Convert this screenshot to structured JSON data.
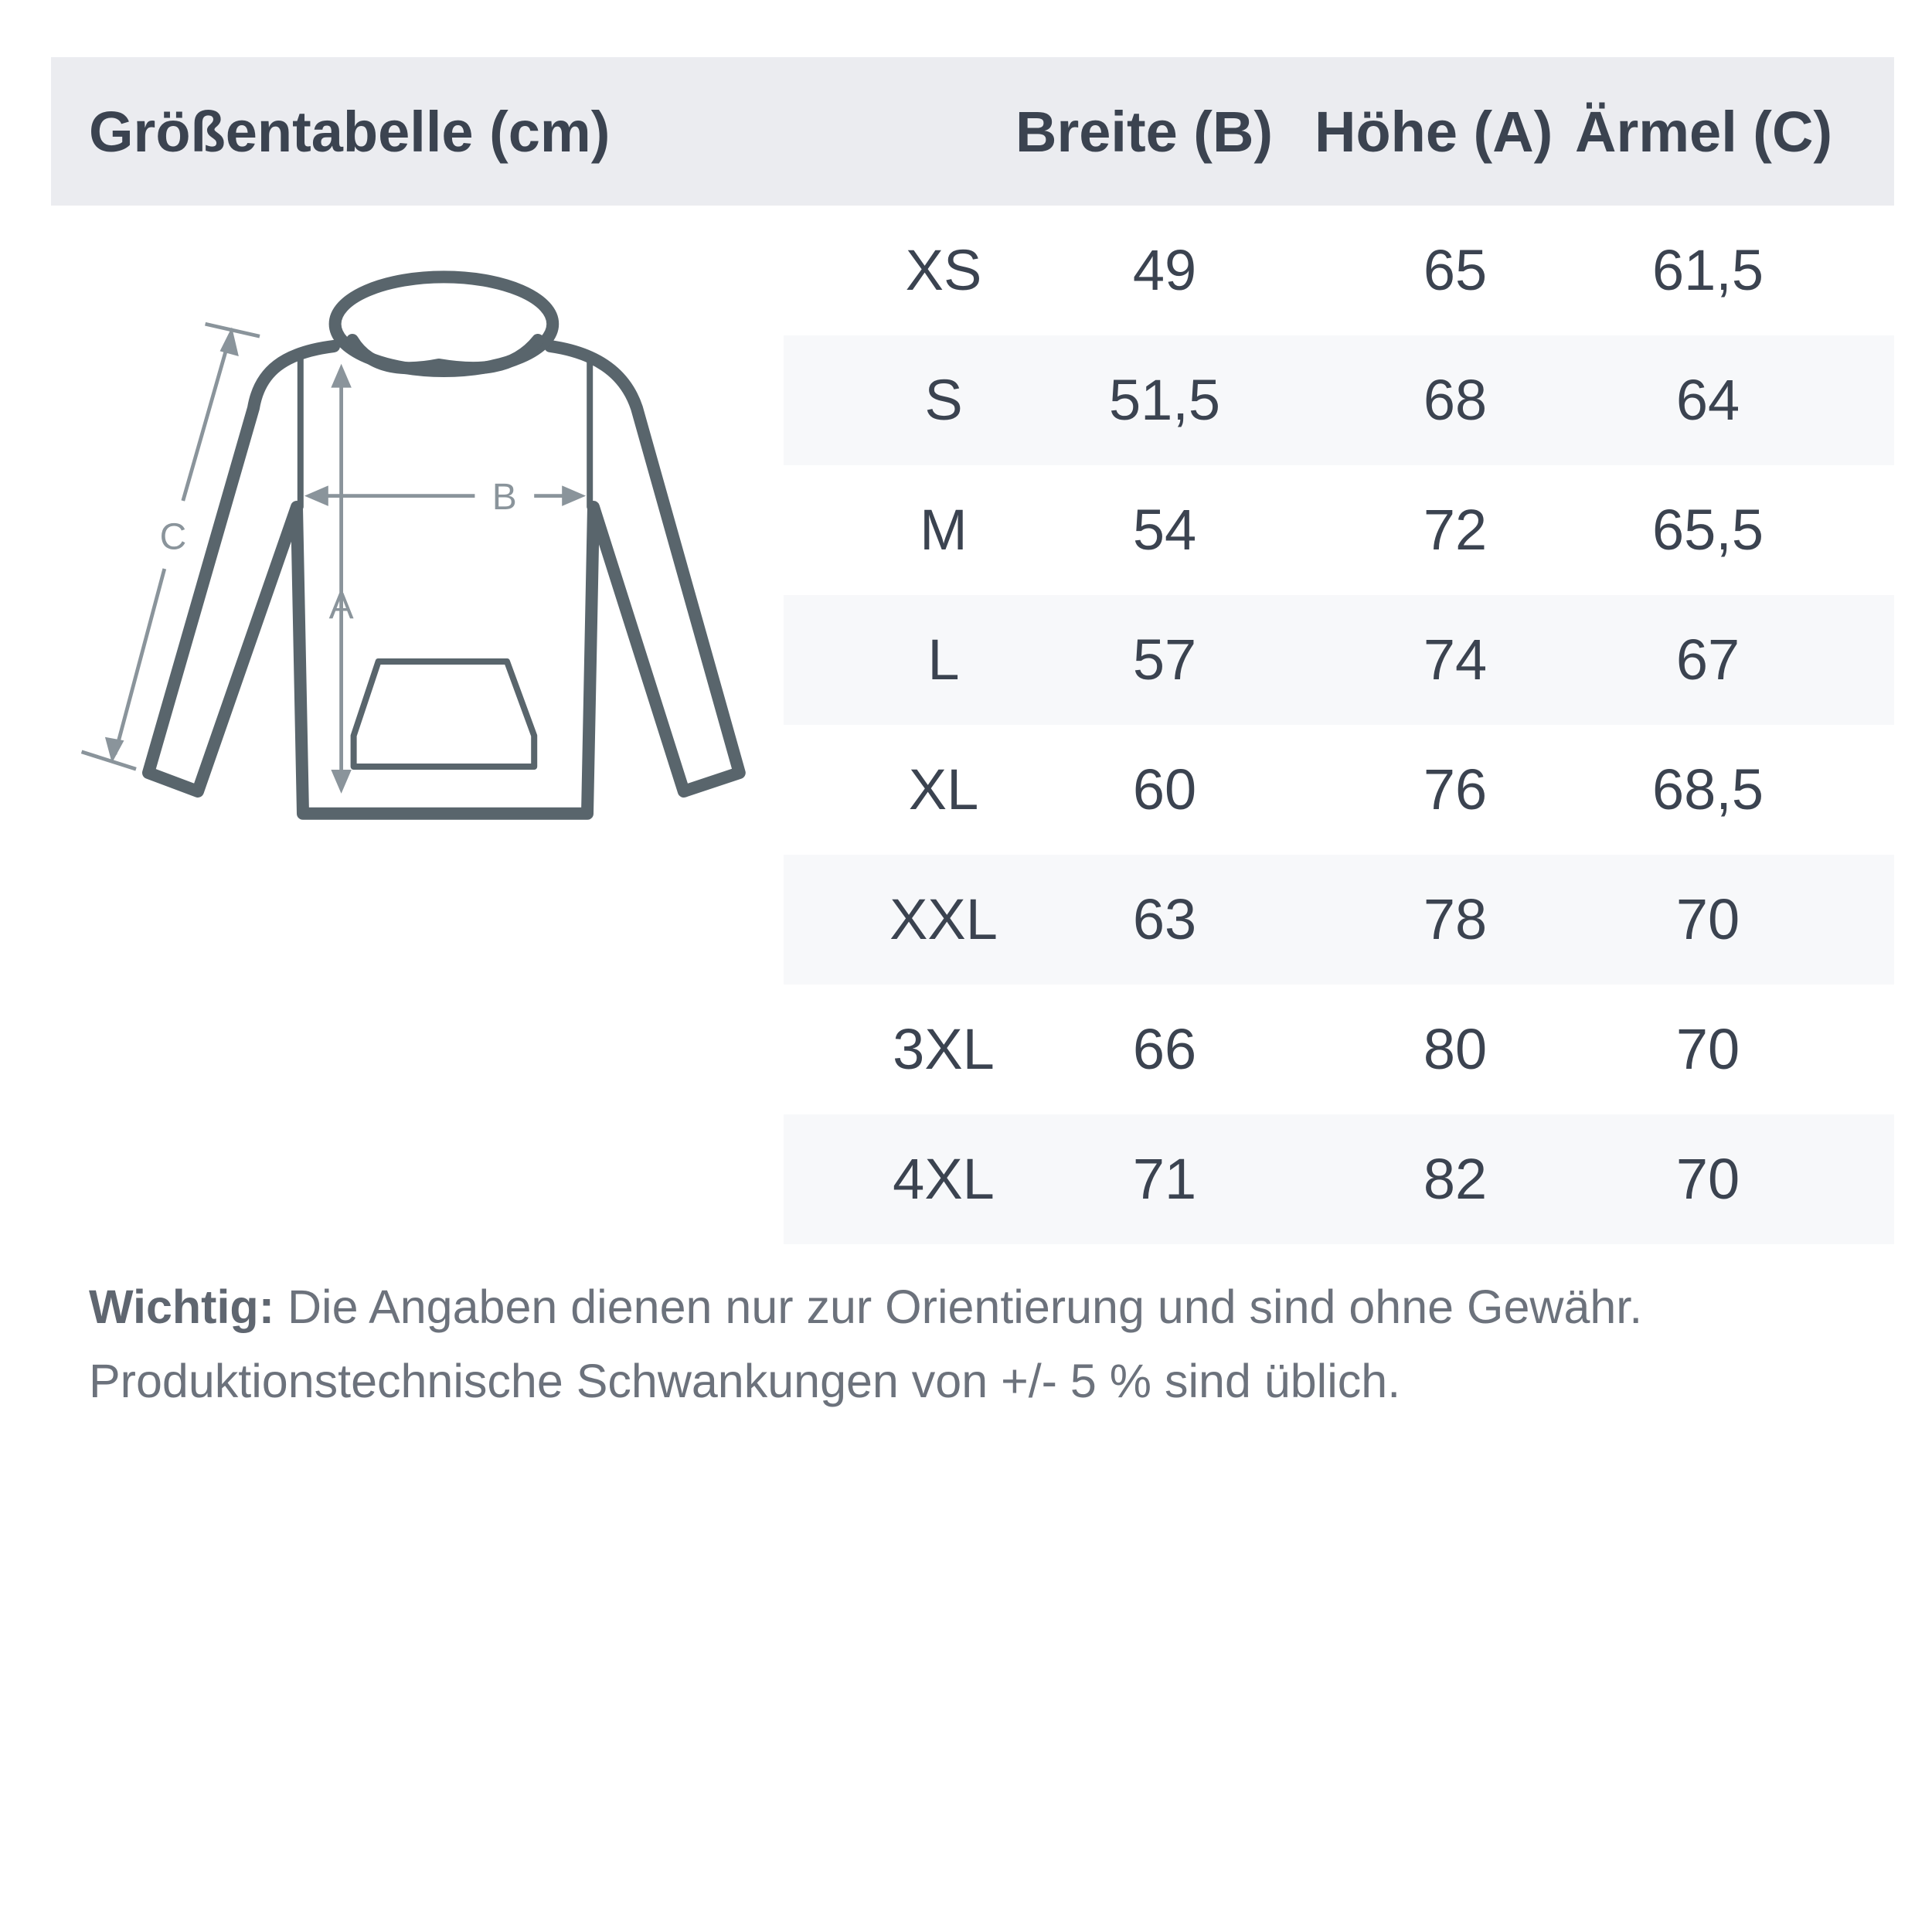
{
  "header": {
    "title": "Größentabelle (cm)",
    "columns": [
      "Breite (B)",
      "Höhe (A)",
      "Ärmel (C)"
    ]
  },
  "rows": [
    {
      "size": "XS",
      "breite": "49",
      "hoehe": "65",
      "aermel": "61,5"
    },
    {
      "size": "S",
      "breite": "51,5",
      "hoehe": "68",
      "aermel": "64"
    },
    {
      "size": "M",
      "breite": "54",
      "hoehe": "72",
      "aermel": "65,5"
    },
    {
      "size": "L",
      "breite": "57",
      "hoehe": "74",
      "aermel": "67"
    },
    {
      "size": "XL",
      "breite": "60",
      "hoehe": "76",
      "aermel": "68,5"
    },
    {
      "size": "XXL",
      "breite": "63",
      "hoehe": "78",
      "aermel": "70"
    },
    {
      "size": "3XL",
      "breite": "66",
      "hoehe": "80",
      "aermel": "70"
    },
    {
      "size": "4XL",
      "breite": "71",
      "hoehe": "82",
      "aermel": "70"
    }
  ],
  "diagram": {
    "label_a": "A",
    "label_b": "B",
    "label_c": "C"
  },
  "note": {
    "bold": "Wichtig:",
    "line1": " Die Angaben dienen nur zur Orientierung und sind ohne Gewähr.",
    "line2": "Produktionstechnische Schwankungen von +/- 5 % sind üblich."
  },
  "colors": {
    "header_bg": "#ebecf0",
    "row_shade": "#f7f8fa",
    "text": "#3b4350",
    "outline": "#59656c"
  }
}
